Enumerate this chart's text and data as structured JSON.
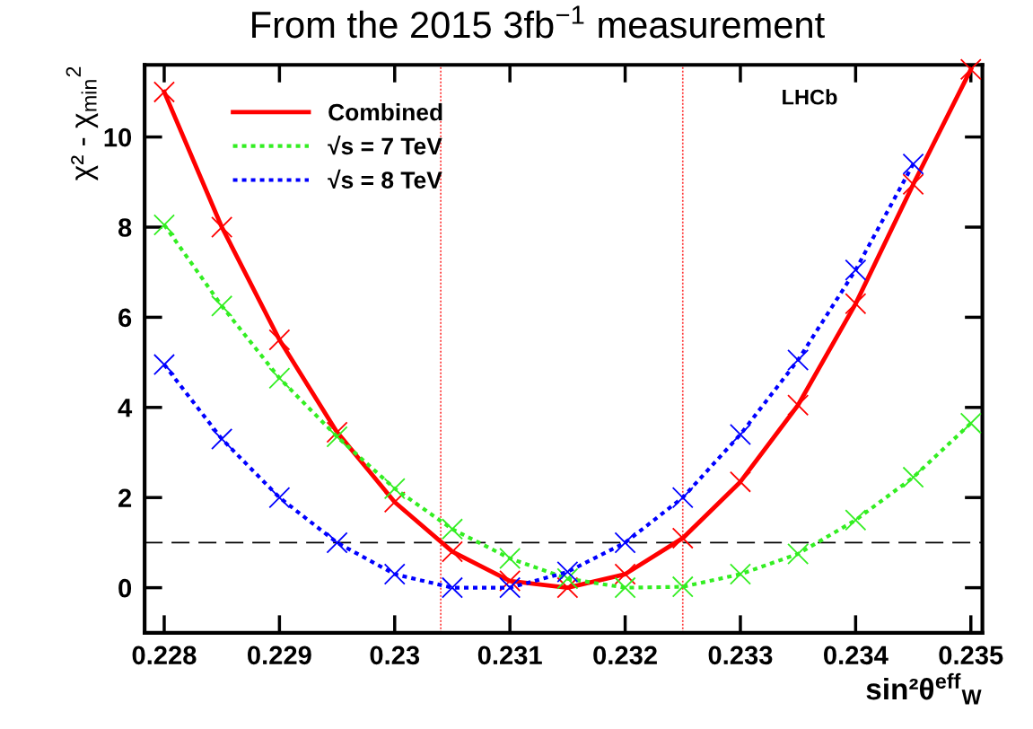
{
  "chart_data": {
    "type": "line",
    "title": "From the 2015 3fb$^{−1}$ measurement",
    "xlabel": "sin²θ$^{eff}$$_{W}$",
    "ylabel": "χ² - χ$_{min}$$^{2}$",
    "x": [
      0.228,
      0.2285,
      0.229,
      0.2295,
      0.23,
      0.2305,
      0.231,
      0.2315,
      0.232,
      0.2325,
      0.233,
      0.2335,
      0.234,
      0.2345,
      0.235
    ],
    "series": [
      {
        "name": "Combined",
        "color": "#ff0000",
        "line_style": "solid",
        "values": [
          11.0,
          8.0,
          5.5,
          3.45,
          1.9,
          0.8,
          0.15,
          0.0,
          0.3,
          1.1,
          2.35,
          4.05,
          6.3,
          8.95,
          11.5
        ]
      },
      {
        "name": "√s = 7 TeV",
        "color": "#33ee22",
        "line_style": "dotted",
        "values": [
          8.05,
          6.25,
          4.65,
          3.35,
          2.2,
          1.3,
          0.65,
          0.2,
          0.0,
          0.02,
          0.3,
          0.75,
          1.5,
          2.45,
          3.65
        ]
      },
      {
        "name": "√s = 8 TeV",
        "color": "#0000ff",
        "line_style": "dotted",
        "values": [
          4.95,
          3.3,
          2.0,
          1.0,
          0.3,
          0.0,
          0.0,
          0.35,
          1.0,
          2.0,
          3.4,
          5.05,
          7.05,
          9.4,
          null
        ]
      }
    ],
    "marker": "cross",
    "xlim": [
      0.22783,
      0.2351
    ],
    "ylim": [
      -1,
      11.6
    ],
    "xticks": [
      0.228,
      0.229,
      0.23,
      0.231,
      0.232,
      0.233,
      0.234,
      0.235
    ],
    "yticks": [
      0,
      2,
      4,
      6,
      8,
      10
    ],
    "ref_lines": [
      {
        "axis": "x",
        "value": 0.2304,
        "color": "#ff3333",
        "line_style": "dotted"
      },
      {
        "axis": "x",
        "value": 0.2325,
        "color": "#ff3333",
        "line_style": "dotted"
      },
      {
        "axis": "y",
        "value": 1,
        "color": "#000000",
        "line_style": "dashed"
      }
    ],
    "annotations": [
      "LHCb"
    ],
    "legend": "top left",
    "grid": false
  }
}
